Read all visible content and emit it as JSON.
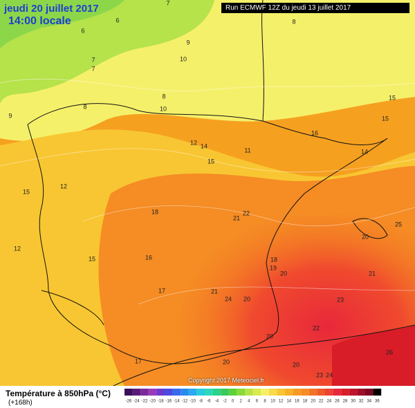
{
  "header": {
    "title_line1": "jeudi 20 juillet 2017",
    "title_line2": "14:00 locale",
    "run": "Run ECMWF 12Z du jeudi 13 juillet 2017"
  },
  "map": {
    "contour_labels": [
      "7",
      "6",
      "6",
      "9",
      "10",
      "7",
      "7",
      "8",
      "8",
      "8",
      "9",
      "10",
      "15",
      "15",
      "16",
      "12",
      "14",
      "11",
      "14",
      "15",
      "12",
      "15",
      "18",
      "21",
      "22",
      "25",
      "20",
      "12",
      "15",
      "16",
      "18",
      "19",
      "20",
      "21",
      "17",
      "21",
      "24",
      "20",
      "23",
      "22",
      "20",
      "20",
      "20",
      "17",
      "26",
      "23",
      "24"
    ]
  },
  "footer": {
    "copyright": "Copyright 2017 Meteociel.fr",
    "title": "Température à 850hPa (°C)",
    "lead": "(+168h)",
    "scale_labels": [
      "-26",
      "-24",
      "-22",
      "-20",
      "-18",
      "-16",
      "-14",
      "-12",
      "-10",
      "-8",
      "-6",
      "-4",
      "-2",
      "0",
      "2",
      "4",
      "6",
      "8",
      "10",
      "12",
      "14",
      "16",
      "18",
      "20",
      "22",
      "24",
      "26",
      "28",
      "30",
      "32",
      "34",
      "36"
    ]
  }
}
